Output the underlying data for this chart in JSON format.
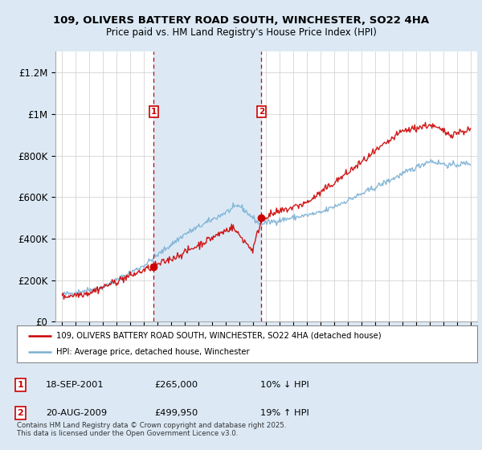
{
  "title_line1": "109, OLIVERS BATTERY ROAD SOUTH, WINCHESTER, SO22 4HA",
  "title_line2": "Price paid vs. HM Land Registry's House Price Index (HPI)",
  "purchase1_date": "18-SEP-2001",
  "purchase1_price": 265000,
  "purchase1_hpi_diff": "10% ↓ HPI",
  "purchase2_date": "20-AUG-2009",
  "purchase2_price": 499950,
  "purchase2_hpi_diff": "19% ↑ HPI",
  "vline1_year": 2001.72,
  "vline2_year": 2009.64,
  "marker1_year": 2001.72,
  "marker1_price": 265000,
  "marker2_year": 2009.64,
  "marker2_price": 499950,
  "label1_year": 2001.72,
  "label1_price": 1000000,
  "label2_year": 2009.64,
  "label2_price": 1000000,
  "ylim_min": 0,
  "ylim_max": 1300000,
  "xlim_min": 1994.5,
  "xlim_max": 2025.5,
  "background_color": "#dce9f5",
  "plot_bg_color": "#ffffff",
  "span_color": "#dce9f5",
  "red_color": "#cc0000",
  "blue_color": "#7ab0d4",
  "vline_color": "#cc0000",
  "footer_text": "Contains HM Land Registry data © Crown copyright and database right 2025.\nThis data is licensed under the Open Government Licence v3.0.",
  "legend_label_red": "109, OLIVERS BATTERY ROAD SOUTH, WINCHESTER, SO22 4HA (detached house)",
  "legend_label_blue": "HPI: Average price, detached house, Winchester",
  "ytick_labels": [
    "£0",
    "£200K",
    "£400K",
    "£600K",
    "£800K",
    "£1M",
    "£1.2M"
  ],
  "ytick_values": [
    0,
    200000,
    400000,
    600000,
    800000,
    1000000,
    1200000
  ],
  "xtick_years": [
    1995,
    1996,
    1997,
    1998,
    1999,
    2000,
    2001,
    2002,
    2003,
    2004,
    2005,
    2006,
    2007,
    2008,
    2009,
    2010,
    2011,
    2012,
    2013,
    2014,
    2015,
    2016,
    2017,
    2018,
    2019,
    2020,
    2021,
    2022,
    2023,
    2024,
    2025
  ]
}
